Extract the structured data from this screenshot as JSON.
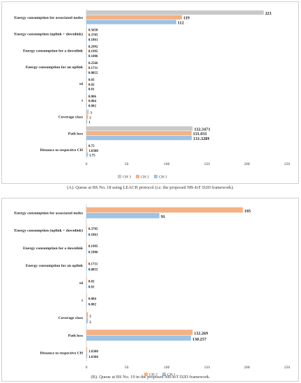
{
  "colors": {
    "CH 1": "#9dc3e6",
    "CH 2": "#f4b183",
    "CH 3": "#c9c9c9"
  },
  "captions": {
    "a": "(A). Queue at BS No. 18 using LEACH protocol (i.e. the proposed NB-IoT D2D framework).",
    "b": "(B). Queue at BS No. 19 in the proposed NB-IoT D2D framework."
  },
  "chart_data": [
    {
      "type": "bar",
      "orientation": "horizontal",
      "categories": [
        "Energy consumption for associated nodes",
        "Energy consumption (uplink + downlink)",
        "Energy consumption for a downlink",
        "Energy consumption for an uplink",
        "td",
        "t",
        "Coverage class",
        "Path loss",
        "Distance to  respective CH"
      ],
      "series": [
        {
          "name": "CH 3",
          "values": [
            221,
            0.5658,
            0.2992,
            0.2566,
            0.03,
            0.006,
            3,
            132.3471,
            0.75
          ],
          "labels": [
            "221",
            "0.5658",
            "0.2992",
            "0.2566",
            "0.03",
            "0.006",
            "3",
            "132.3471",
            "0.75"
          ]
        },
        {
          "name": "CH 2",
          "values": [
            119,
            0.3705,
            0.1995,
            0.1711,
            0.02,
            0.004,
            2,
            131.031,
            1.0308
          ],
          "labels": [
            "119",
            "0.3705",
            "0.1995",
            "0.1711",
            "0.02",
            "0.004",
            "2",
            "131.031",
            "1.0308"
          ]
        },
        {
          "name": "CH 1",
          "values": [
            112,
            0.1861,
            0.1006,
            0.0855,
            0.01,
            0.002,
            1,
            131.3289,
            1.75
          ],
          "labels": [
            "112",
            "0.1861",
            "0.1006",
            "0.0855",
            "0.01",
            "0.002",
            "1",
            "131.3289",
            "1.75"
          ]
        }
      ],
      "xlim": [
        0,
        250
      ],
      "xticks": [
        0,
        50,
        100,
        150,
        200,
        250
      ],
      "legend": [
        "CH 3",
        "CH 2",
        "CH 1"
      ],
      "legend_position": "bottom",
      "grid": false
    },
    {
      "type": "bar",
      "orientation": "horizontal",
      "categories": [
        "Energy consumption for associated nodes",
        "Energy consumption (uplink + downlink)",
        "Energy consumption for a downlink",
        "Energy consumption for an uplink",
        "td",
        "t",
        "Coverage class",
        "Path loss",
        "Distance to  respective CH"
      ],
      "series": [
        {
          "name": "CH 2",
          "values": [
            195,
            0.3705,
            0.1995,
            0.1711,
            0.02,
            0.004,
            2,
            132.269,
            1.0308
          ],
          "labels": [
            "195",
            "0.3705",
            "0.1995",
            "0.1711",
            "0.02",
            "0.004",
            "2",
            "132.269",
            "1.0308"
          ]
        },
        {
          "name": "CH 1",
          "values": [
            91,
            0.1861,
            0.1006,
            0.0855,
            0.01,
            0.002,
            2,
            130.257,
            1.0308
          ],
          "labels": [
            "91",
            "0.1861",
            "0.1006",
            "0.0855",
            "0.01",
            "0.002",
            "2",
            "130.257",
            "1.0308"
          ]
        }
      ],
      "xlim": [
        0,
        250
      ],
      "xticks": [
        0,
        50,
        100,
        150,
        200,
        250
      ],
      "legend": [
        "CH 2",
        "CH 1"
      ],
      "legend_position": "bottom",
      "grid": false
    }
  ]
}
